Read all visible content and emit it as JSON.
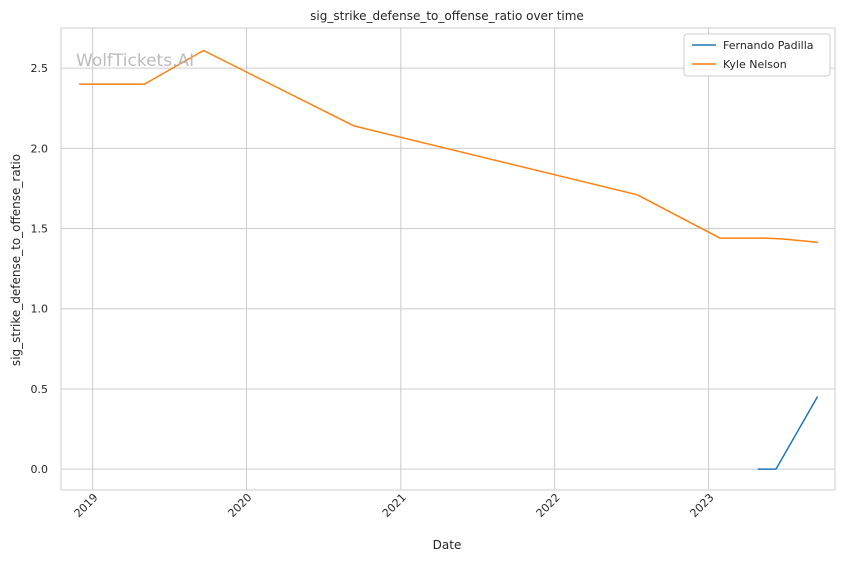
{
  "watermark": "WolfTickets.AI",
  "chart_data": {
    "type": "line",
    "title": "sig_strike_defense_to_offense_ratio over time",
    "xlabel": "Date",
    "ylabel": "sig_strike_defense_to_offense_ratio",
    "xlim": [
      "2018-10-18",
      "2023-10-28"
    ],
    "ylim": [
      -0.13,
      2.75
    ],
    "xticks": [
      {
        "label": "2019",
        "date": "2019-01-01"
      },
      {
        "label": "2020",
        "date": "2020-01-01"
      },
      {
        "label": "2021",
        "date": "2021-01-01"
      },
      {
        "label": "2022",
        "date": "2022-01-01"
      },
      {
        "label": "2023",
        "date": "2023-01-01"
      }
    ],
    "yticks": [
      0.0,
      0.5,
      1.0,
      1.5,
      2.0,
      2.5
    ],
    "ytick_labels": [
      "0.0",
      "0.5",
      "1.0",
      "1.5",
      "2.0",
      "2.5"
    ],
    "grid": true,
    "legend_position": "top-right",
    "series": [
      {
        "name": "Fernando Padilla",
        "color": "#1f77b4",
        "points": [
          {
            "x": "2023-04-29",
            "y": 0.0
          },
          {
            "x": "2023-06-10",
            "y": 0.0
          },
          {
            "x": "2023-09-16",
            "y": 0.45
          }
        ]
      },
      {
        "name": "Kyle Nelson",
        "color": "#ff7f0e",
        "points": [
          {
            "x": "2018-12-01",
            "y": 2.4
          },
          {
            "x": "2019-05-04",
            "y": 2.4
          },
          {
            "x": "2019-09-21",
            "y": 2.61
          },
          {
            "x": "2020-09-12",
            "y": 2.14
          },
          {
            "x": "2022-07-16",
            "y": 1.71
          },
          {
            "x": "2023-01-28",
            "y": 1.44
          },
          {
            "x": "2023-05-13",
            "y": 1.44
          },
          {
            "x": "2023-06-24",
            "y": 1.435
          },
          {
            "x": "2023-09-16",
            "y": 1.415
          }
        ]
      }
    ]
  }
}
